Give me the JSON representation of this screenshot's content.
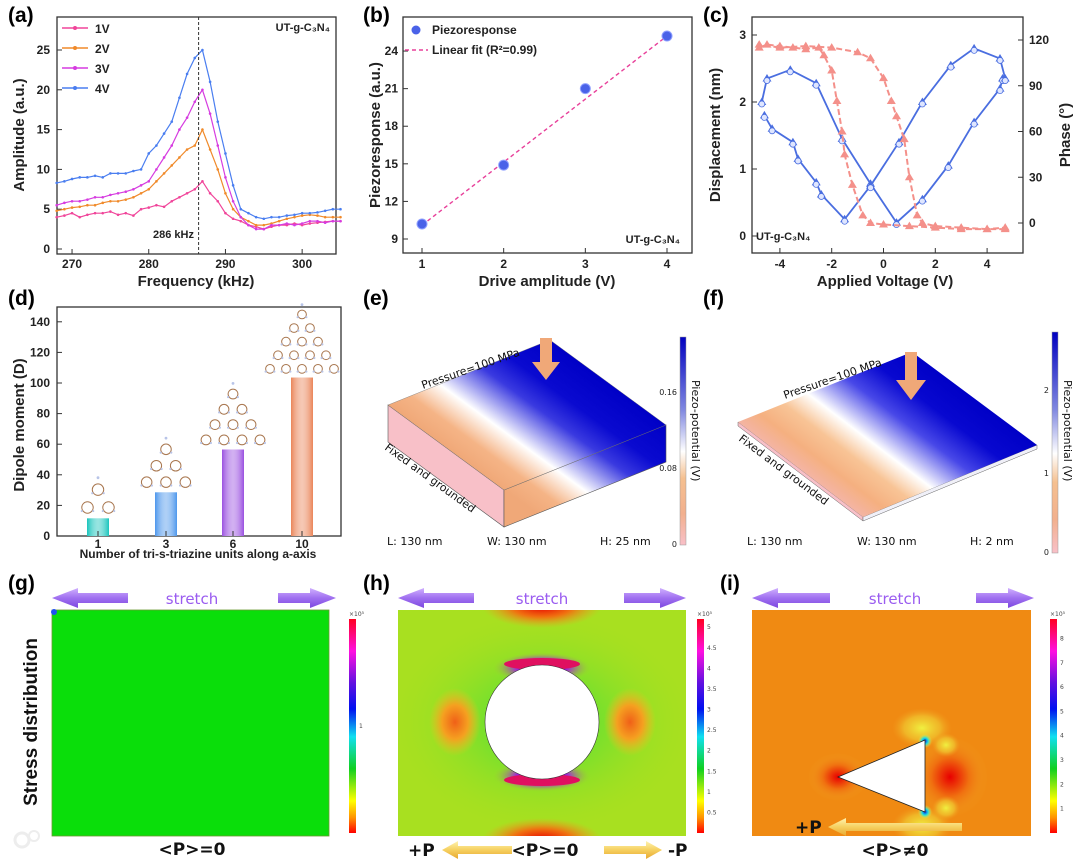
{
  "panel_labels": [
    "(a)",
    "(b)",
    "(c)",
    "(d)",
    "(e)",
    "(f)",
    "(g)",
    "(h)",
    "(i)"
  ],
  "chart_data": [
    {
      "type": "line",
      "title": "",
      "xlabel": "Frequency (kHz)",
      "ylabel": "Amplitude (a.u.)",
      "xlim": [
        268,
        305
      ],
      "ylim": [
        0,
        28
      ],
      "xticks": [
        "270",
        "280",
        "290",
        "300"
      ],
      "yticks": [
        "0",
        "5",
        "10",
        "15",
        "20",
        "25"
      ],
      "legend_position": "top-left",
      "annotation": "UT-g-C₃N₄",
      "marker_label": "286 kHz",
      "marker_x": 286.5,
      "x": [
        268,
        269,
        270,
        271,
        272,
        273,
        274,
        275,
        276,
        277,
        278,
        279,
        280,
        281,
        282,
        283,
        284,
        285,
        286,
        287,
        288,
        289,
        290,
        291,
        292,
        293,
        294,
        295,
        296,
        297,
        298,
        299,
        300,
        301,
        302,
        303,
        304,
        305
      ],
      "series": [
        {
          "name": "1V",
          "color": "#f0459a",
          "values": [
            4,
            4.2,
            4.5,
            4,
            4.3,
            4.5,
            4.5,
            4.7,
            4.3,
            4.5,
            4.2,
            5,
            5.2,
            5.5,
            5.3,
            6,
            6.5,
            7,
            7.5,
            8.5,
            7,
            6,
            4.5,
            3.8,
            3.5,
            3,
            2.8,
            2.5,
            2.8,
            3,
            3,
            3.2,
            3,
            3.2,
            3.3,
            3.4,
            3.5,
            3.5
          ]
        },
        {
          "name": "2V",
          "color": "#f08a2a",
          "values": [
            4.8,
            5,
            5.2,
            5.3,
            5.5,
            5.5,
            5.8,
            6,
            6,
            6.2,
            6.5,
            7,
            7.5,
            8.5,
            9.5,
            10.5,
            11.5,
            12.5,
            13,
            15,
            12.5,
            10,
            7,
            5,
            4,
            3.5,
            3,
            3,
            3.2,
            3.5,
            3.8,
            4,
            4.2,
            4.3,
            4.2,
            4,
            4,
            4
          ]
        },
        {
          "name": "3V",
          "color": "#d63ce0",
          "values": [
            5.5,
            5.8,
            6,
            6,
            6.2,
            6.5,
            6.5,
            6.8,
            7,
            7.2,
            7.5,
            8,
            8.5,
            10,
            11.5,
            13,
            15,
            16.5,
            18.5,
            20,
            17,
            13,
            9,
            6,
            4,
            3,
            2.5,
            2.5,
            3,
            3,
            3.2,
            3,
            3.2,
            3.5,
            3.5,
            3.3,
            3.5,
            3.5
          ]
        },
        {
          "name": "4V",
          "color": "#4a7ef0",
          "values": [
            8.3,
            8.5,
            8.8,
            9,
            9,
            9.2,
            9,
            9.5,
            9.5,
            9.5,
            9.8,
            10,
            12,
            13,
            14.5,
            16,
            19,
            22,
            24,
            25,
            21,
            16,
            12,
            8,
            5,
            4.5,
            4,
            3.8,
            4,
            4,
            4.2,
            4.3,
            4.5,
            4.5,
            4.6,
            4.8,
            5,
            5
          ]
        }
      ]
    },
    {
      "type": "scatter",
      "xlabel": "Drive amplitude (V)",
      "ylabel": "Piezoresponse (a.u.)",
      "xlim": [
        0.8,
        4.3
      ],
      "ylim": [
        8,
        27
      ],
      "xticks": [
        "1",
        "2",
        "3",
        "4"
      ],
      "yticks": [
        "9",
        "12",
        "15",
        "18",
        "21",
        "24"
      ],
      "legend_position": "top-left",
      "annotation": "UT-g-C₃N₄",
      "series": [
        {
          "name": "Piezoresponse",
          "color": "#4a62e8",
          "x": [
            1,
            2,
            3,
            4
          ],
          "values": [
            10.2,
            14.9,
            21.0,
            25.2
          ]
        },
        {
          "name": "Linear fit (R²=0.99)",
          "color": "#e8409a",
          "x": [
            1,
            4
          ],
          "values": [
            10.1,
            25.2
          ]
        }
      ]
    },
    {
      "type": "line",
      "xlabel": "Applied Voltage (V)",
      "ylabel": "Displacement (nm)",
      "ylabel_right": "Phase (°)",
      "xlim": [
        -5.3,
        5.3
      ],
      "ylim": [
        -0.3,
        3.2
      ],
      "ylim_right": [
        -15,
        130
      ],
      "xticks": [
        "-4",
        "-2",
        "0",
        "2",
        "4"
      ],
      "yticks": [
        "0",
        "1",
        "2",
        "3"
      ],
      "yticks_right": [
        "0",
        "30",
        "60",
        "90",
        "120"
      ],
      "annotation": "UT-g-C₃N₄",
      "series": [
        {
          "name": "Displacement forward",
          "axis": "left",
          "color": "#4a6ee0",
          "x": [
            -4.7,
            -4.5,
            -3.6,
            -2.6,
            -1.6,
            -0.5,
            0.5,
            1.5,
            2.5,
            3.5,
            4.5,
            4.6
          ],
          "values": [
            2.0,
            2.35,
            2.48,
            2.28,
            1.45,
            0.78,
            0.2,
            0.55,
            1.05,
            1.7,
            2.2,
            2.35
          ]
        },
        {
          "name": "Displacement reverse",
          "axis": "left",
          "color": "#4a6ee0",
          "x": [
            -4.6,
            -4.3,
            -3.5,
            -3.3,
            -2.6,
            -2.4,
            -1.5,
            -0.5,
            0.6,
            1.5,
            2.6,
            3.5,
            4.5,
            4.7
          ],
          "values": [
            1.8,
            1.6,
            1.4,
            1.15,
            0.8,
            0.62,
            0.25,
            0.75,
            1.4,
            2.0,
            2.55,
            2.8,
            2.65,
            2.35
          ]
        },
        {
          "name": "Phase forward",
          "axis": "right",
          "color": "#f4908a",
          "x": [
            -4.8,
            -4.5,
            -4,
            -3.5,
            -3,
            -2.5,
            -2.3,
            -2.0,
            -1.8,
            -1.6,
            -1.5,
            -1.2,
            -0.8,
            -0.5,
            0,
            1,
            2,
            3,
            4,
            4.7
          ],
          "values": [
            115,
            117,
            116,
            115,
            114,
            115,
            110,
            100,
            80,
            60,
            45,
            25,
            5,
            0,
            -1,
            -2,
            -3,
            -4,
            -4,
            -3
          ]
        },
        {
          "name": "Phase reverse",
          "axis": "right",
          "color": "#f4908a",
          "x": [
            4.7,
            4,
            3,
            2,
            1.5,
            1.3,
            1.0,
            0.8,
            0.5,
            0.3,
            0,
            -0.5,
            -1,
            -2,
            -3,
            -4,
            -4.8
          ],
          "values": [
            -4,
            -4,
            -3,
            -2,
            0,
            5,
            30,
            55,
            70,
            80,
            95,
            108,
            112,
            115,
            116,
            115,
            117
          ]
        }
      ]
    },
    {
      "type": "bar",
      "xlabel": "Number of tri-s-triazine units along a-axis",
      "ylabel": "Dipole moment (D)",
      "ylim": [
        0,
        148
      ],
      "yticks": [
        "0",
        "20",
        "40",
        "60",
        "80",
        "100",
        "120",
        "140"
      ],
      "categories": [
        "1",
        "3",
        "6",
        "10"
      ],
      "values": [
        11.5,
        28.5,
        56.5,
        103.5
      ],
      "colors": [
        "#18c4bc",
        "#4c96ec",
        "#9a50e0",
        "#ea8458"
      ]
    }
  ],
  "simulations": {
    "e": {
      "pressure": "Pressure=100 MPa",
      "boundary": "Fixed and grounded",
      "L": "L: 130 nm",
      "W": "W: 130 nm",
      "H": "H: 25 nm",
      "colorbar_label": "Piezo-potential (V)",
      "colorbar_ticks": [
        "0",
        "0.08",
        "0.16"
      ]
    },
    "f": {
      "pressure": "Pressure=100 MPa",
      "boundary": "Fixed and grounded",
      "L": "L: 130 nm",
      "W": "W: 130 nm",
      "H": "H: 2 nm",
      "colorbar_label": "Piezo-potential (V)",
      "colorbar_ticks": [
        "0",
        "1",
        "2"
      ]
    }
  },
  "stress": {
    "row_label": "Stress distribution",
    "stretch": "stretch",
    "g": {
      "polarization": "<P>=0",
      "scale": "×10⁵",
      "ticks": [
        "1"
      ]
    },
    "h": {
      "polarization": "<P>=0",
      "plus": "+P",
      "minus": "-P",
      "scale": "×10⁵",
      "ticks": [
        "0.5",
        "1",
        "1.5",
        "2",
        "2.5",
        "3",
        "3.5",
        "4",
        "4.5",
        "5"
      ]
    },
    "i": {
      "polarization": "<P>≠0",
      "plus": "+P",
      "scale": "×10⁵",
      "ticks": [
        "1",
        "2",
        "3",
        "4",
        "5",
        "6",
        "7",
        "8"
      ]
    }
  },
  "watermark": "大数跨境"
}
